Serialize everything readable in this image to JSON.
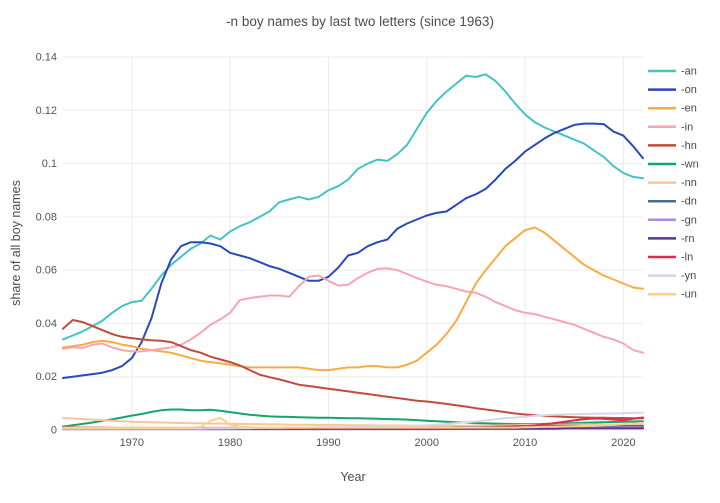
{
  "chart_data": {
    "type": "line",
    "title": "-n boy names by last two letters (since 1963)",
    "xlabel": "Year",
    "ylabel": "share of all boy names",
    "xlim": [
      1963,
      2022
    ],
    "ylim": [
      0,
      0.14
    ],
    "x_start": 1963,
    "x_step": 1,
    "grid": true,
    "legend_position": "right",
    "x_ticks": [
      1970,
      1980,
      1990,
      2000,
      2010,
      2020
    ],
    "x_tick_labels": [
      "1970",
      "1980",
      "1990",
      "2000",
      "2010",
      "2020"
    ],
    "y_ticks": [
      0,
      0.02,
      0.04,
      0.06,
      0.08,
      0.1,
      0.12,
      0.14
    ],
    "y_tick_labels": [
      "0",
      "0.02",
      "0.04",
      "0.06",
      "0.08",
      "0.1",
      "0.12",
      "0.14"
    ],
    "series": [
      {
        "name": "-an",
        "color": "#46c2c6",
        "values": [
          0.034,
          0.0355,
          0.037,
          0.039,
          0.041,
          0.044,
          0.0465,
          0.048,
          0.0485,
          0.053,
          0.058,
          0.062,
          0.065,
          0.068,
          0.07,
          0.073,
          0.0715,
          0.0745,
          0.0765,
          0.078,
          0.08,
          0.082,
          0.0855,
          0.0865,
          0.0875,
          0.0865,
          0.0875,
          0.09,
          0.0915,
          0.094,
          0.098,
          0.1,
          0.1015,
          0.101,
          0.1035,
          0.107,
          0.113,
          0.119,
          0.1235,
          0.127,
          0.13,
          0.133,
          0.1325,
          0.1335,
          0.131,
          0.127,
          0.1225,
          0.1185,
          0.1155,
          0.1135,
          0.112,
          0.1105,
          0.109,
          0.1075,
          0.105,
          0.1025,
          0.099,
          0.0965,
          0.095,
          0.0945
        ]
      },
      {
        "name": "-on",
        "color": "#2a49b7",
        "values": [
          0.0195,
          0.02,
          0.0205,
          0.021,
          0.0215,
          0.0225,
          0.024,
          0.027,
          0.033,
          0.042,
          0.055,
          0.064,
          0.069,
          0.0705,
          0.0705,
          0.07,
          0.069,
          0.0665,
          0.0655,
          0.0645,
          0.063,
          0.0615,
          0.0605,
          0.059,
          0.0575,
          0.056,
          0.056,
          0.0575,
          0.061,
          0.0655,
          0.0665,
          0.069,
          0.0705,
          0.0715,
          0.0755,
          0.0775,
          0.079,
          0.0805,
          0.0815,
          0.082,
          0.0845,
          0.087,
          0.0885,
          0.0905,
          0.094,
          0.098,
          0.101,
          0.1045,
          0.107,
          0.1095,
          0.1115,
          0.113,
          0.1145,
          0.115,
          0.115,
          0.1148,
          0.112,
          0.1105,
          0.1065,
          0.102
        ]
      },
      {
        "name": "-en",
        "color": "#f9ab44",
        "values": [
          0.031,
          0.0315,
          0.032,
          0.033,
          0.0335,
          0.033,
          0.032,
          0.0315,
          0.0305,
          0.03,
          0.0295,
          0.029,
          0.028,
          0.027,
          0.026,
          0.0255,
          0.025,
          0.0245,
          0.024,
          0.0235,
          0.0235,
          0.0235,
          0.0235,
          0.0235,
          0.0235,
          0.023,
          0.0225,
          0.0225,
          0.023,
          0.0235,
          0.0235,
          0.024,
          0.024,
          0.0235,
          0.0235,
          0.0245,
          0.026,
          0.029,
          0.032,
          0.036,
          0.041,
          0.048,
          0.055,
          0.06,
          0.0645,
          0.069,
          0.072,
          0.075,
          0.076,
          0.074,
          0.071,
          0.068,
          0.065,
          0.062,
          0.06,
          0.058,
          0.0565,
          0.055,
          0.0535,
          0.053
        ]
      },
      {
        "name": "-in",
        "color": "#f8a5b2",
        "values": [
          0.0305,
          0.031,
          0.0308,
          0.032,
          0.0325,
          0.031,
          0.03,
          0.0295,
          0.0295,
          0.03,
          0.0305,
          0.031,
          0.032,
          0.034,
          0.0365,
          0.0395,
          0.0415,
          0.044,
          0.0488,
          0.0495,
          0.05,
          0.0505,
          0.0505,
          0.05,
          0.054,
          0.0575,
          0.058,
          0.056,
          0.0542,
          0.0545,
          0.057,
          0.059,
          0.0605,
          0.0607,
          0.06,
          0.0585,
          0.057,
          0.0557,
          0.0545,
          0.054,
          0.053,
          0.052,
          0.0515,
          0.05,
          0.048,
          0.0465,
          0.045,
          0.044,
          0.0435,
          0.0425,
          0.0415,
          0.0405,
          0.0395,
          0.038,
          0.0365,
          0.035,
          0.034,
          0.0325,
          0.03,
          0.029
        ]
      },
      {
        "name": "-hn",
        "color": "#bf4d3e",
        "values": [
          0.038,
          0.0413,
          0.0405,
          0.039,
          0.0375,
          0.036,
          0.035,
          0.0345,
          0.034,
          0.0337,
          0.0335,
          0.033,
          0.0315,
          0.03,
          0.029,
          0.0275,
          0.0265,
          0.0255,
          0.0242,
          0.0225,
          0.0208,
          0.0198,
          0.019,
          0.018,
          0.017,
          0.0165,
          0.016,
          0.0155,
          0.015,
          0.0145,
          0.014,
          0.0135,
          0.013,
          0.0125,
          0.012,
          0.0115,
          0.011,
          0.0107,
          0.0103,
          0.0098,
          0.0093,
          0.0088,
          0.0082,
          0.0077,
          0.0072,
          0.0067,
          0.0062,
          0.0058,
          0.0055,
          0.0053,
          0.0051,
          0.0049,
          0.0048,
          0.0047,
          0.0046,
          0.0046,
          0.0045,
          0.0045,
          0.0044,
          0.0044
        ]
      },
      {
        "name": "-wn",
        "color": "#13a46f",
        "values": [
          0.0013,
          0.0018,
          0.0023,
          0.0028,
          0.0034,
          0.004,
          0.0047,
          0.0054,
          0.006,
          0.0068,
          0.0074,
          0.0077,
          0.0077,
          0.0074,
          0.0074,
          0.0076,
          0.0072,
          0.0067,
          0.0062,
          0.0057,
          0.0054,
          0.0051,
          0.005,
          0.0049,
          0.0048,
          0.0047,
          0.0046,
          0.0046,
          0.0045,
          0.0044,
          0.0044,
          0.0043,
          0.0042,
          0.0041,
          0.004,
          0.0039,
          0.0037,
          0.0035,
          0.0033,
          0.0031,
          0.0029,
          0.0028,
          0.0026,
          0.0025,
          0.0024,
          0.0023,
          0.0022,
          0.0022,
          0.0022,
          0.0023,
          0.0024,
          0.0025,
          0.0026,
          0.0027,
          0.0028,
          0.0029,
          0.003,
          0.0031,
          0.0032,
          0.0033
        ]
      },
      {
        "name": "-nn",
        "color": "#f9c49c",
        "values": [
          0.0045,
          0.0043,
          0.0041,
          0.0039,
          0.0037,
          0.0035,
          0.0033,
          0.0031,
          0.003,
          0.0029,
          0.0028,
          0.0027,
          0.0026,
          0.0025,
          0.0025,
          0.0024,
          0.0024,
          0.0023,
          0.0023,
          0.0022,
          0.0022,
          0.0021,
          0.0021,
          0.002,
          0.002,
          0.002,
          0.0019,
          0.0019,
          0.0019,
          0.0018,
          0.0018,
          0.0018,
          0.0017,
          0.0017,
          0.0017,
          0.0017,
          0.0016,
          0.0016,
          0.0016,
          0.0016,
          0.0016,
          0.0016,
          0.0017,
          0.0017,
          0.0017,
          0.0018,
          0.0018,
          0.0019,
          0.0019,
          0.002,
          0.002,
          0.002,
          0.0021,
          0.0021,
          0.0021,
          0.002,
          0.002,
          0.002,
          0.002,
          0.002
        ]
      },
      {
        "name": "-dn",
        "color": "#456f8c",
        "values": [
          0.0006,
          0.0006,
          0.0006,
          0.0006,
          0.0006,
          0.0006,
          0.0006,
          0.0006,
          0.0006,
          0.0006,
          0.0006,
          0.0006,
          0.0006,
          0.0006,
          0.0006,
          0.0006,
          0.0006,
          0.0006,
          0.0006,
          0.0006,
          0.0006,
          0.0006,
          0.0006,
          0.0006,
          0.0006,
          0.0006,
          0.0006,
          0.0006,
          0.0006,
          0.0006,
          0.0006,
          0.0006,
          0.0006,
          0.0007,
          0.0007,
          0.0008,
          0.0008,
          0.0008,
          0.0009,
          0.0009,
          0.001,
          0.001,
          0.001,
          0.0011,
          0.0012,
          0.0013,
          0.0014,
          0.0015,
          0.0015,
          0.0016,
          0.0016,
          0.0016,
          0.0016,
          0.0015,
          0.0015,
          0.0015,
          0.0015,
          0.0015,
          0.0015,
          0.0015
        ]
      },
      {
        "name": "-gn",
        "color": "#b287dd",
        "values": [
          0.0003,
          0.0003,
          0.0003,
          0.0003,
          0.0003,
          0.0003,
          0.0003,
          0.0003,
          0.0003,
          0.0003,
          0.0003,
          0.0003,
          0.0003,
          0.0003,
          0.0003,
          0.0003,
          0.0003,
          0.0003,
          0.0003,
          0.0003,
          0.0003,
          0.0003,
          0.0003,
          0.0003,
          0.0003,
          0.0003,
          0.0003,
          0.0003,
          0.0003,
          0.0003,
          0.0003,
          0.0003,
          0.0003,
          0.0003,
          0.0003,
          0.0003,
          0.0003,
          0.0003,
          0.0003,
          0.0004,
          0.0004,
          0.0004,
          0.0004,
          0.0005,
          0.0005,
          0.0005,
          0.0005,
          0.0005,
          0.0006,
          0.0006,
          0.0007,
          0.0007,
          0.0008,
          0.0008,
          0.0009,
          0.0009,
          0.0009,
          0.001,
          0.001,
          0.001
        ]
      },
      {
        "name": "-rn",
        "color": "#5b3391",
        "values": [
          0.0008,
          0.0008,
          0.0007,
          0.0007,
          0.0007,
          0.0007,
          0.0006,
          0.0006,
          0.0006,
          0.0006,
          0.0006,
          0.0006,
          0.0006,
          0.0006,
          0.0006,
          0.0006,
          0.0006,
          0.0006,
          0.0005,
          0.0005,
          0.0005,
          0.0005,
          0.0005,
          0.0005,
          0.0005,
          0.0005,
          0.0005,
          0.0005,
          0.0005,
          0.0005,
          0.0005,
          0.0005,
          0.0005,
          0.0005,
          0.0005,
          0.0005,
          0.0005,
          0.0005,
          0.0005,
          0.0005,
          0.0005,
          0.0005,
          0.0005,
          0.0005,
          0.0005,
          0.0005,
          0.0005,
          0.0005,
          0.0005,
          0.0005,
          0.0005,
          0.0006,
          0.0006,
          0.0006,
          0.0006,
          0.0006,
          0.0006,
          0.0006,
          0.0006,
          0.0006
        ]
      },
      {
        "name": "-ln",
        "color": "#e22b4e",
        "values": [
          0.001,
          0.001,
          0.0009,
          0.0009,
          0.0009,
          0.0008,
          0.0008,
          0.0008,
          0.0008,
          0.0008,
          0.0008,
          0.0008,
          0.0008,
          0.0008,
          0.0008,
          0.0008,
          0.0008,
          0.0008,
          0.0008,
          0.0008,
          0.0008,
          0.0008,
          0.0008,
          0.0008,
          0.0008,
          0.0008,
          0.0008,
          0.0008,
          0.0008,
          0.0008,
          0.0008,
          0.0008,
          0.0008,
          0.0008,
          0.0008,
          0.0008,
          0.0008,
          0.0008,
          0.0008,
          0.0008,
          0.0008,
          0.0009,
          0.0009,
          0.001,
          0.001,
          0.0011,
          0.0012,
          0.0014,
          0.0017,
          0.0021,
          0.0026,
          0.0031,
          0.0036,
          0.004,
          0.0043,
          0.0042,
          0.0039,
          0.0037,
          0.0042,
          0.0047
        ]
      },
      {
        "name": "-yn",
        "color": "#d6d6e8",
        "values": [
          0.0006,
          0.0006,
          0.0006,
          0.0006,
          0.0006,
          0.0006,
          0.0006,
          0.0006,
          0.0006,
          0.0006,
          0.0006,
          0.0006,
          0.0006,
          0.0006,
          0.0006,
          0.0007,
          0.0007,
          0.0007,
          0.0007,
          0.0007,
          0.0008,
          0.0008,
          0.0008,
          0.0009,
          0.0009,
          0.0009,
          0.001,
          0.001,
          0.0011,
          0.0011,
          0.0012,
          0.0012,
          0.0013,
          0.0013,
          0.0014,
          0.0015,
          0.0016,
          0.0018,
          0.002,
          0.0023,
          0.0026,
          0.0029,
          0.0032,
          0.0036,
          0.004,
          0.0044,
          0.0047,
          0.005,
          0.0053,
          0.0055,
          0.0057,
          0.0058,
          0.0059,
          0.006,
          0.0061,
          0.0062,
          0.0062,
          0.0063,
          0.0064,
          0.0065
        ]
      },
      {
        "name": "-un",
        "color": "#f7d385",
        "values": [
          0.0009,
          0.0009,
          0.0008,
          0.0008,
          0.0008,
          0.0008,
          0.0008,
          0.0008,
          0.0008,
          0.0008,
          0.0008,
          0.0008,
          0.0008,
          0.0008,
          0.0012,
          0.0035,
          0.0045,
          0.002,
          0.0013,
          0.001,
          0.0009,
          0.0009,
          0.0009,
          0.0009,
          0.0009,
          0.0009,
          0.0009,
          0.0009,
          0.0009,
          0.0009,
          0.0009,
          0.0009,
          0.0009,
          0.0009,
          0.0009,
          0.0009,
          0.0009,
          0.0009,
          0.0009,
          0.0009,
          0.0009,
          0.0009,
          0.0009,
          0.0009,
          0.0009,
          0.0009,
          0.0009,
          0.001,
          0.0011,
          0.0012,
          0.0012,
          0.0013,
          0.0014,
          0.0015,
          0.0016,
          0.0018,
          0.0019,
          0.0022,
          0.0024,
          0.0027
        ]
      }
    ]
  },
  "style": {
    "grid_color": "#ebebeb",
    "tick_color": "#545454",
    "title_color": "#4c4c4c",
    "legend_text_color": "#474747",
    "background": "#ffffff"
  }
}
